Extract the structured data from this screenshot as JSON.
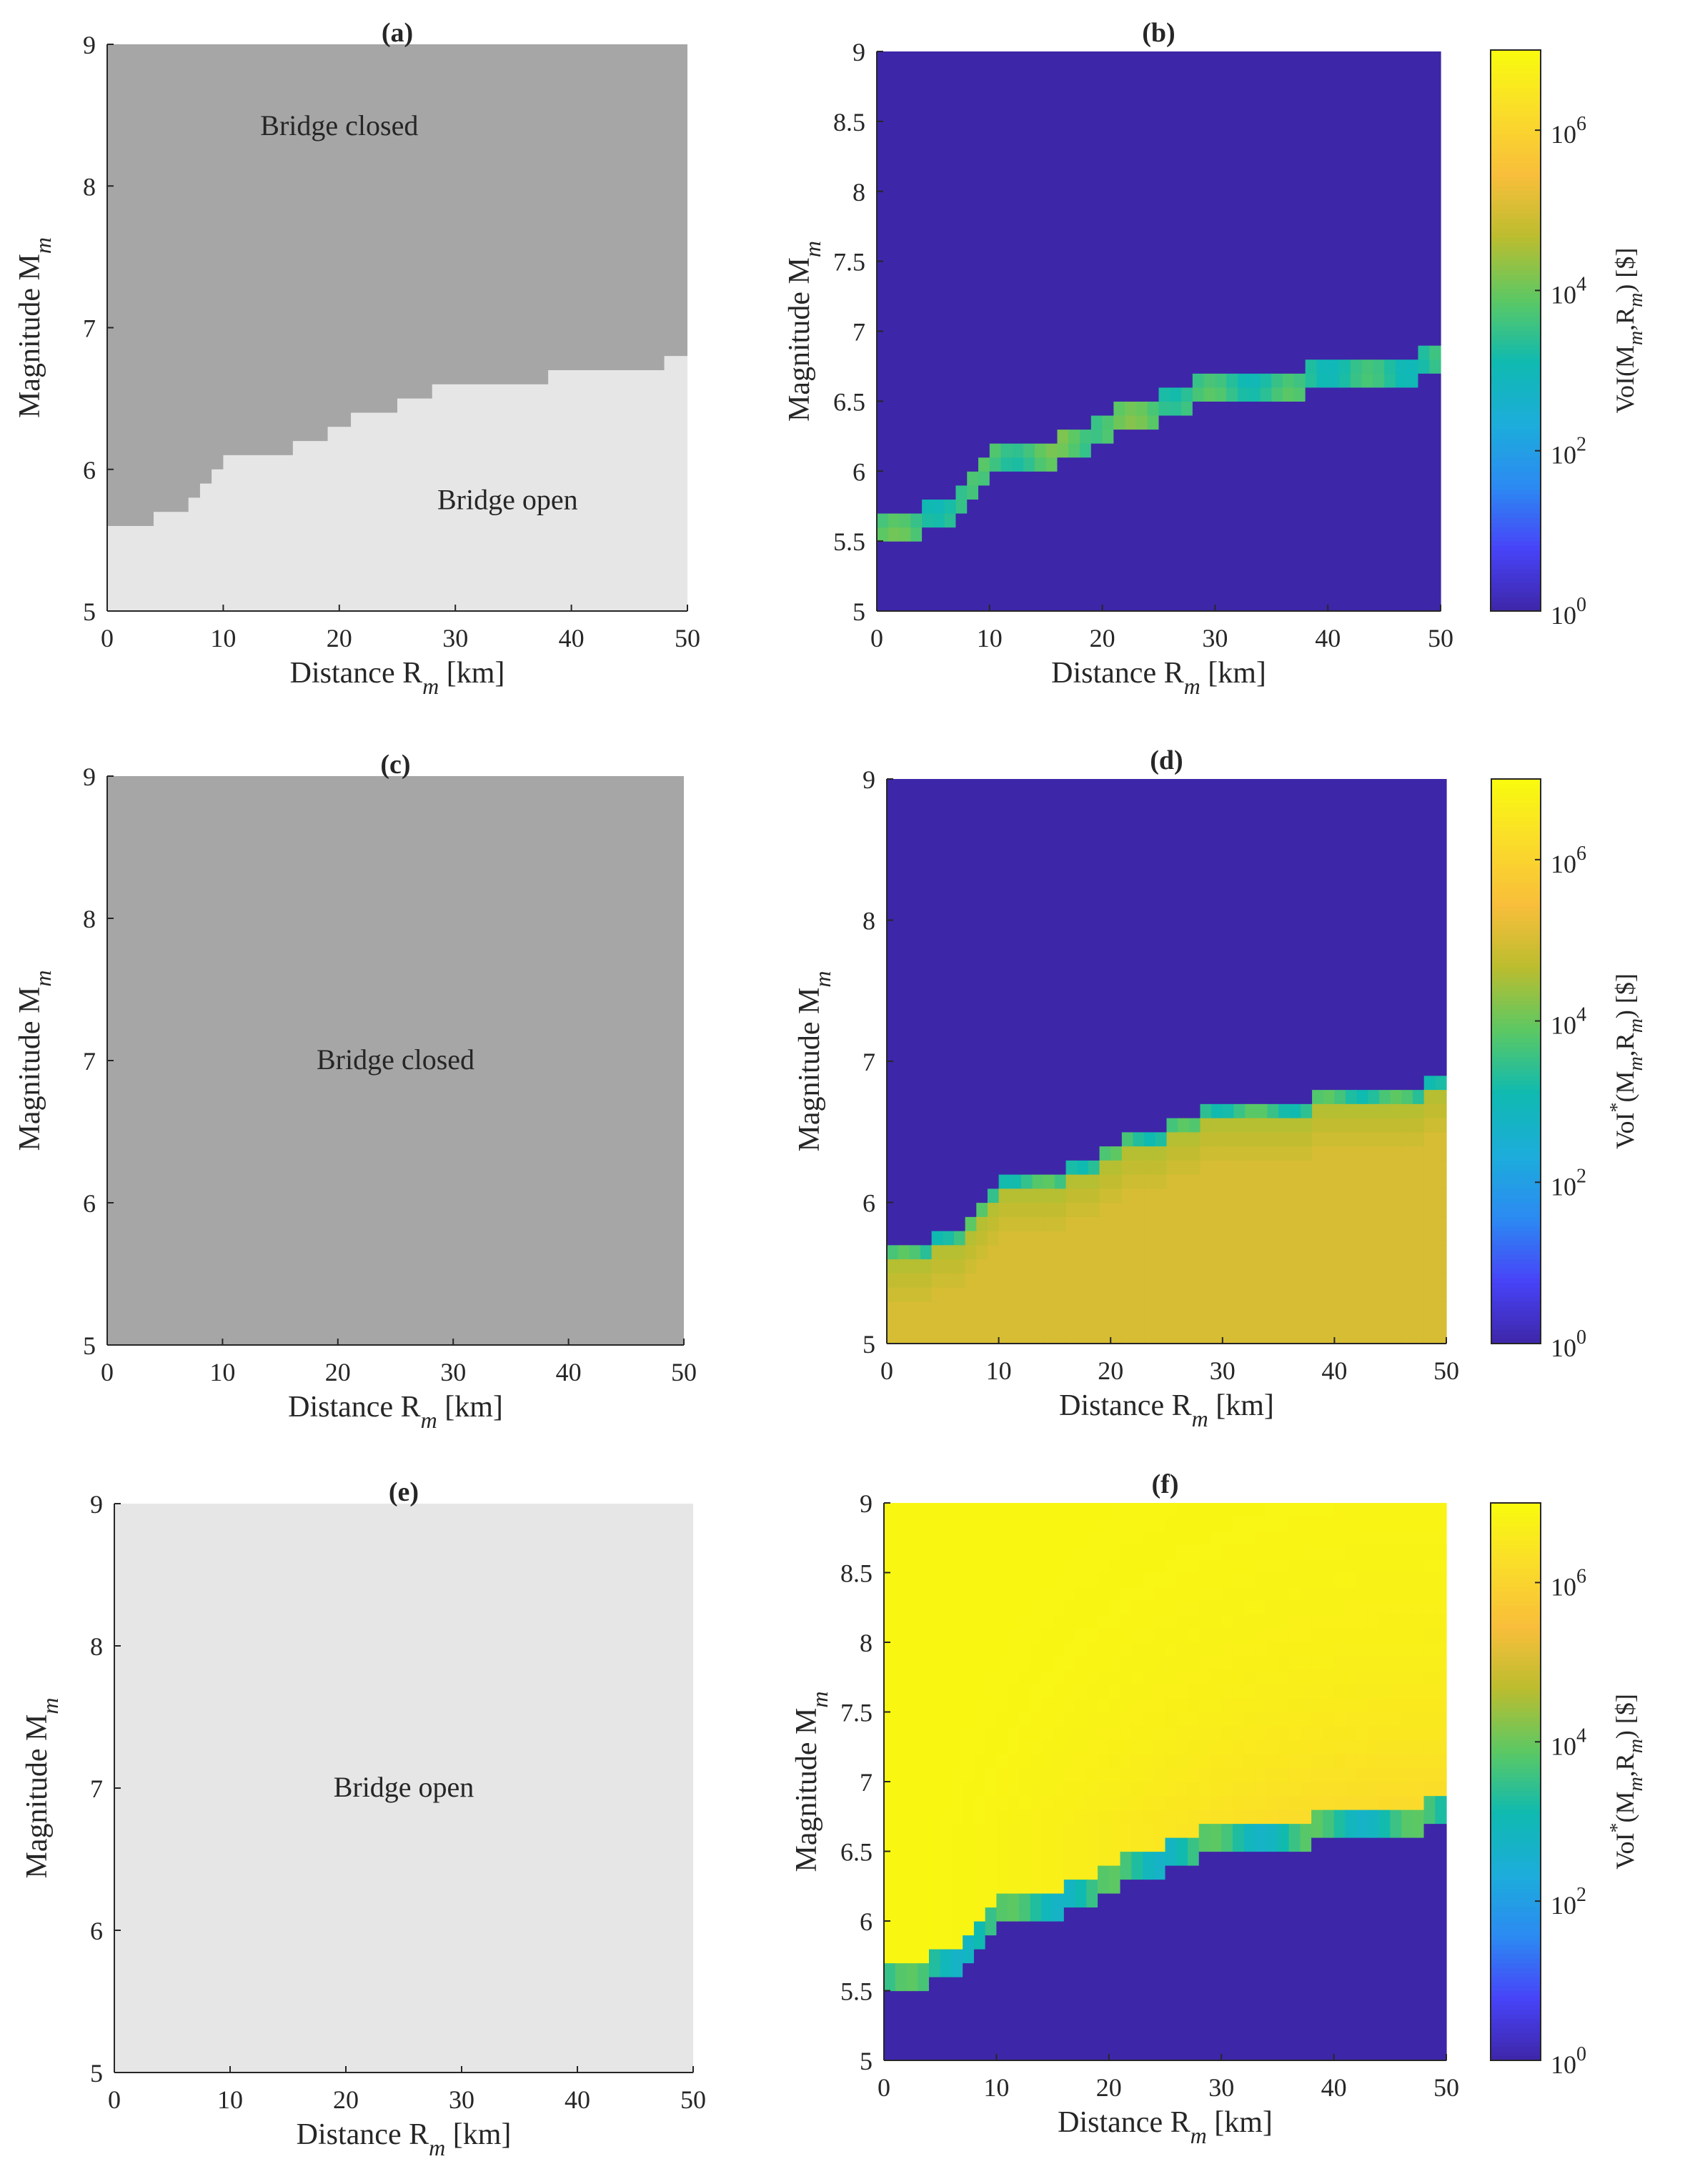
{
  "figure": {
    "colors": {
      "closed": "#a6a6a6",
      "open": "#e6e6e6",
      "axis": "#262626",
      "background": "#ffffff",
      "cmap": [
        "#3e26a8",
        "#4743f8",
        "#2c8af2",
        "#1caddb",
        "#0fbab0",
        "#5cc863",
        "#bbbd2f",
        "#f9be3b",
        "#fadc2a",
        "#f9fb0e"
      ]
    },
    "x_tick_labels": [
      "0",
      "10",
      "20",
      "30",
      "40",
      "50"
    ],
    "panel_titles": [
      "(a)",
      "(b)",
      "(c)",
      "(d)",
      "(e)",
      "(f)"
    ],
    "labels": {
      "closed": "Bridge closed",
      "open": "Bridge open",
      "x_main": "Distance R",
      "x_sub": "m",
      "x_unit": " [km]",
      "y_main": "Magnitude M",
      "y_sub": "m"
    },
    "colorbar": {
      "tick_base": "10",
      "exponents": [
        "0",
        "2",
        "4",
        "6"
      ],
      "label_b": {
        "pre": "VoI(M",
        "s1": "m",
        "mid": ",R",
        "s2": "m",
        "post": ") [$]"
      },
      "label_star": {
        "pre": "VoI",
        "sup": "*",
        "open": "(M",
        "s1": "m",
        "mid": ",R",
        "s2": "m",
        "post": ") [$]"
      },
      "log_range": [
        0,
        7
      ]
    }
  },
  "chart_data": [
    {
      "id": "a",
      "title": "(a)",
      "type": "heatmap",
      "x": [
        0,
        50
      ],
      "ylim": [
        5,
        9
      ],
      "yticks": [
        "5",
        "6",
        "7",
        "8",
        "9"
      ],
      "boundary": [
        [
          0,
          5.6
        ],
        [
          4,
          5.7
        ],
        [
          7,
          5.8
        ],
        [
          8,
          5.9
        ],
        [
          9,
          6.0
        ],
        [
          10,
          6.1
        ],
        [
          16,
          6.2
        ],
        [
          19,
          6.3
        ],
        [
          21,
          6.4
        ],
        [
          25,
          6.5
        ],
        [
          28,
          6.6
        ],
        [
          38,
          6.7
        ],
        [
          48,
          6.8
        ],
        [
          50,
          6.8
        ]
      ],
      "above": "Bridge closed",
      "below": "Bridge open"
    },
    {
      "id": "b",
      "title": "(b)",
      "type": "heatmap",
      "x": [
        0,
        50
      ],
      "ylim": [
        5,
        9
      ],
      "yticks": [
        "5",
        "5.5",
        "6",
        "6.5",
        "7",
        "7.5",
        "8",
        "8.5",
        "9"
      ],
      "boundary": [
        [
          0,
          5.6
        ],
        [
          4,
          5.7
        ],
        [
          7,
          5.8
        ],
        [
          8,
          5.9
        ],
        [
          9,
          6.0
        ],
        [
          10,
          6.1
        ],
        [
          16,
          6.2
        ],
        [
          19,
          6.3
        ],
        [
          21,
          6.4
        ],
        [
          25,
          6.5
        ],
        [
          28,
          6.6
        ],
        [
          38,
          6.7
        ],
        [
          48,
          6.8
        ],
        [
          50,
          6.8
        ]
      ],
      "colorbar": "VoI(M_m,R_m) [$]",
      "clim_log10": [
        0,
        7
      ]
    },
    {
      "id": "c",
      "title": "(c)",
      "type": "heatmap",
      "x": [
        0,
        50
      ],
      "ylim": [
        5,
        9
      ],
      "yticks": [
        "5",
        "6",
        "7",
        "8",
        "9"
      ],
      "uniform": "Bridge closed"
    },
    {
      "id": "d",
      "title": "(d)",
      "type": "heatmap",
      "x": [
        0,
        50
      ],
      "ylim": [
        5,
        9
      ],
      "yticks": [
        "5",
        "6",
        "7",
        "8",
        "9"
      ],
      "boundary": [
        [
          0,
          5.6
        ],
        [
          4,
          5.7
        ],
        [
          7,
          5.8
        ],
        [
          8,
          5.9
        ],
        [
          9,
          6.0
        ],
        [
          10,
          6.1
        ],
        [
          16,
          6.2
        ],
        [
          19,
          6.3
        ],
        [
          21,
          6.4
        ],
        [
          25,
          6.5
        ],
        [
          28,
          6.6
        ],
        [
          38,
          6.7
        ],
        [
          48,
          6.8
        ],
        [
          50,
          6.8
        ]
      ],
      "colorbar": "VoI*(M_m,R_m) [$]",
      "clim_log10": [
        0,
        7
      ]
    },
    {
      "id": "e",
      "title": "(e)",
      "type": "heatmap",
      "x": [
        0,
        50
      ],
      "ylim": [
        5,
        9
      ],
      "yticks": [
        "5",
        "6",
        "7",
        "8",
        "9"
      ],
      "uniform": "Bridge open"
    },
    {
      "id": "f",
      "title": "(f)",
      "type": "heatmap",
      "x": [
        0,
        50
      ],
      "ylim": [
        5,
        9
      ],
      "yticks": [
        "5",
        "5.5",
        "6",
        "6.5",
        "7",
        "7.5",
        "8",
        "8.5",
        "9"
      ],
      "boundary": [
        [
          0,
          5.6
        ],
        [
          4,
          5.7
        ],
        [
          7,
          5.8
        ],
        [
          8,
          5.9
        ],
        [
          9,
          6.0
        ],
        [
          10,
          6.1
        ],
        [
          16,
          6.2
        ],
        [
          19,
          6.3
        ],
        [
          21,
          6.4
        ],
        [
          25,
          6.5
        ],
        [
          28,
          6.6
        ],
        [
          38,
          6.7
        ],
        [
          48,
          6.8
        ],
        [
          50,
          6.8
        ]
      ],
      "colorbar": "VoI*(M_m,R_m) [$]",
      "clim_log10": [
        0,
        7
      ]
    }
  ]
}
